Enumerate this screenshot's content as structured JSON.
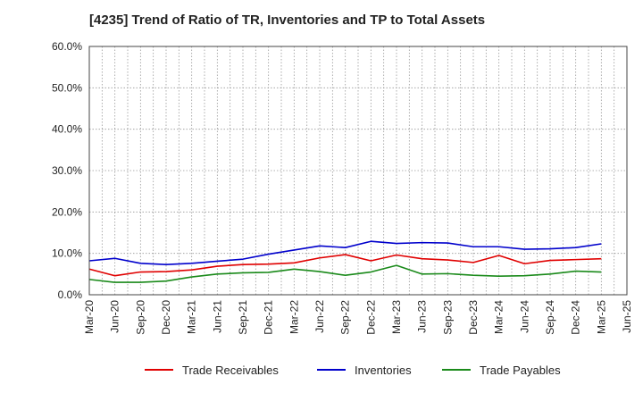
{
  "chart_data": {
    "type": "line",
    "title": "[4235]  Trend of Ratio of TR, Inventories and TP to Total Assets",
    "xlabel": "",
    "ylabel": "",
    "ylim": [
      0,
      60
    ],
    "yticks": [
      "0.0%",
      "10.0%",
      "20.0%",
      "30.0%",
      "40.0%",
      "50.0%",
      "60.0%"
    ],
    "x_tick_labels": [
      "Mar-20",
      "Jun-20",
      "Sep-20",
      "Dec-20",
      "Mar-21",
      "Jun-21",
      "Sep-21",
      "Dec-21",
      "Mar-22",
      "Jun-22",
      "Sep-22",
      "Dec-22",
      "Mar-23",
      "Jun-23",
      "Sep-23",
      "Dec-23",
      "Mar-24",
      "Jun-24",
      "Sep-24",
      "Dec-24",
      "Mar-25",
      "Jun-25"
    ],
    "x": [
      "Mar-20",
      "Jun-20",
      "Sep-20",
      "Dec-20",
      "Mar-21",
      "Jun-21",
      "Sep-21",
      "Dec-21",
      "Mar-22",
      "Jun-22",
      "Sep-22",
      "Dec-22",
      "Mar-23",
      "Jun-23",
      "Sep-23",
      "Dec-23",
      "Mar-24",
      "Jun-24",
      "Sep-24",
      "Dec-24",
      "Mar-25"
    ],
    "grid": true,
    "legend_position": "bottom",
    "series": [
      {
        "name": "Trade Receivables",
        "color": "#e00000",
        "values": [
          6.2,
          4.6,
          5.5,
          5.6,
          6.0,
          6.9,
          7.3,
          7.4,
          7.7,
          8.9,
          9.7,
          8.2,
          9.6,
          8.7,
          8.4,
          7.8,
          9.5,
          7.5,
          8.3,
          8.5,
          8.7
        ]
      },
      {
        "name": "Inventories",
        "color": "#0000cc",
        "values": [
          8.2,
          8.8,
          7.6,
          7.3,
          7.6,
          8.1,
          8.6,
          9.8,
          10.8,
          11.8,
          11.4,
          12.9,
          12.4,
          12.6,
          12.5,
          11.6,
          11.6,
          11.0,
          11.1,
          11.4,
          12.3
        ]
      },
      {
        "name": "Trade Payables",
        "color": "#1a8a1a",
        "values": [
          3.7,
          3.0,
          3.0,
          3.3,
          4.3,
          5.0,
          5.3,
          5.4,
          6.2,
          5.6,
          4.7,
          5.5,
          7.1,
          5.0,
          5.1,
          4.7,
          4.5,
          4.6,
          5.0,
          5.7,
          5.5
        ]
      }
    ]
  }
}
